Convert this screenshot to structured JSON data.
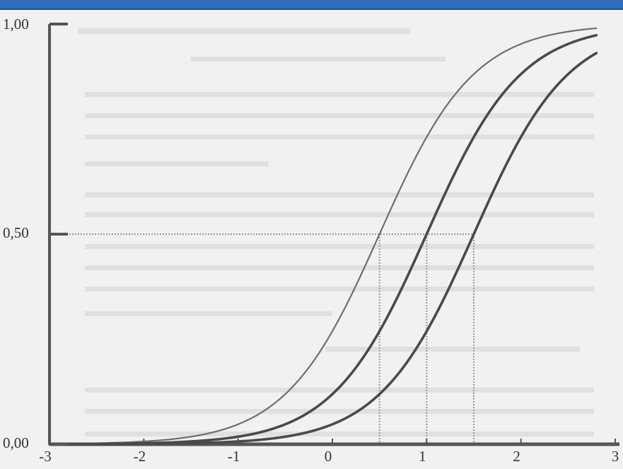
{
  "colors": {
    "banner": "#2d6fbb",
    "axis": "#555555",
    "curve_light": "#6e6e6e",
    "curve_dark": "#4a4a4a",
    "guide": "#9a9a9a"
  },
  "chart_data": {
    "type": "line",
    "title": "",
    "xlabel": "",
    "ylabel": "",
    "xlim": [
      -3,
      3
    ],
    "ylim": [
      0,
      1
    ],
    "x_ticks": [
      -3,
      -2,
      -1,
      0,
      1,
      2,
      3
    ],
    "x_tick_labels": [
      "-3",
      "-2",
      "-1",
      "0",
      "1",
      "2",
      "3"
    ],
    "y_ticks": [
      0,
      0.5,
      1
    ],
    "y_tick_labels": [
      "0,00",
      "0,50",
      "1,00"
    ],
    "grid": false,
    "series": [
      {
        "model": "logistic",
        "location": 0.5,
        "scale": 0.5,
        "x": [
          -3,
          -2.5,
          -2,
          -1.5,
          -1,
          -0.5,
          0,
          0.5,
          1,
          1.5,
          2,
          2.5,
          2.8
        ],
        "values": [
          0.001,
          0.002,
          0.007,
          0.018,
          0.047,
          0.119,
          0.269,
          0.5,
          0.731,
          0.881,
          0.953,
          0.982,
          0.991
        ]
      },
      {
        "model": "logistic",
        "location": 1.0,
        "scale": 0.5,
        "x": [
          -3,
          -2.5,
          -2,
          -1.5,
          -1,
          -0.5,
          0,
          0.5,
          1,
          1.5,
          2,
          2.5,
          2.8
        ],
        "values": [
          0.0003,
          0.0009,
          0.002,
          0.007,
          0.018,
          0.047,
          0.119,
          0.269,
          0.5,
          0.731,
          0.881,
          0.953,
          0.973
        ]
      },
      {
        "model": "logistic",
        "location": 1.5,
        "scale": 0.5,
        "x": [
          -3,
          -2.5,
          -2,
          -1.5,
          -1,
          -0.5,
          0,
          0.5,
          1,
          1.5,
          2,
          2.5,
          2.8
        ],
        "values": [
          0.0001,
          0.0003,
          0.0009,
          0.002,
          0.007,
          0.018,
          0.047,
          0.119,
          0.269,
          0.5,
          0.731,
          0.881,
          0.931
        ]
      }
    ],
    "reference_lines": {
      "horizontal_y": 0.5,
      "vertical_x": [
        0.5,
        1.0,
        1.5
      ]
    }
  }
}
